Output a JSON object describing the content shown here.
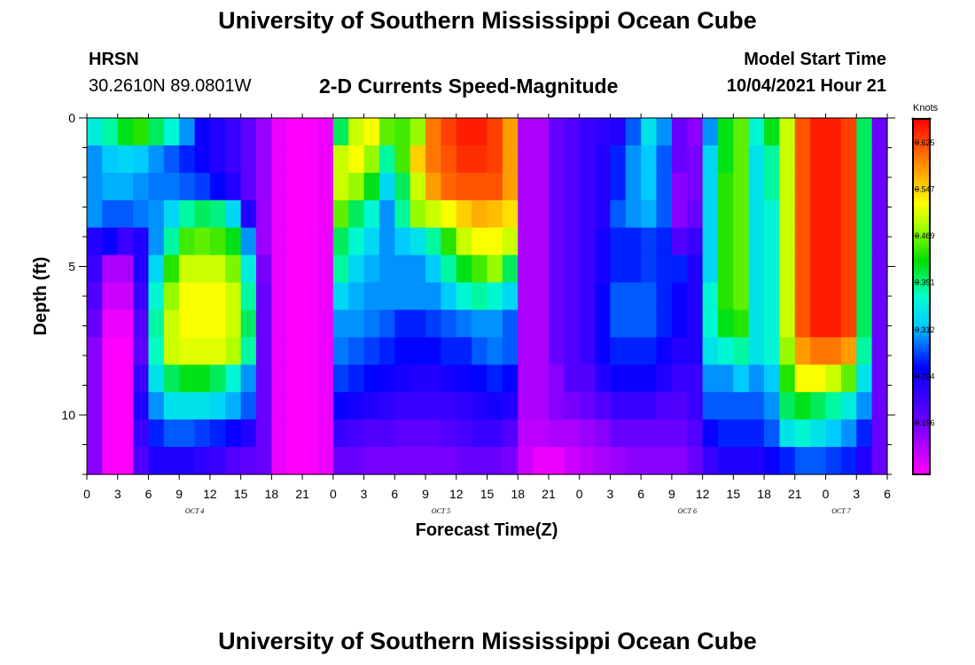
{
  "header": {
    "title": "University of Southern Mississippi Ocean Cube",
    "station": "HRSN",
    "coords": "30.2610N  89.0801W",
    "subtitle": "2-D Currents Speed-Magnitude",
    "model_start_label": "Model Start Time",
    "model_start_value": "10/04/2021 Hour 21",
    "footer_title": "University of Southern Mississippi Ocean Cube"
  },
  "chart_data": {
    "type": "heatmap",
    "title": "2-D Currents Speed-Magnitude",
    "xlabel": "Forecast Time(Z)",
    "ylabel": "Depth (ft)",
    "x_ticks": [
      "0",
      "3",
      "6",
      "9",
      "12",
      "15",
      "18",
      "21",
      "0",
      "3",
      "6",
      "9",
      "12",
      "15",
      "18",
      "21",
      "0",
      "3",
      "6",
      "9",
      "12",
      "15",
      "18",
      "21",
      "0",
      "3",
      "6"
    ],
    "day_labels": [
      {
        "label": "OCT 4",
        "tick_index": 4
      },
      {
        "label": "OCT 5",
        "tick_index": 12
      },
      {
        "label": "OCT 6",
        "tick_index": 20
      },
      {
        "label": "OCT 7",
        "tick_index": 25
      }
    ],
    "y_ticks": [
      "0",
      "5",
      "10"
    ],
    "y_range_ft": [
      0,
      12
    ],
    "x_range_hours": [
      0,
      78
    ],
    "colorbar": {
      "unit_label": "Knots",
      "tick_labels": [
        "0.625",
        "0.547",
        "0.469",
        "0.391",
        "0.312",
        "0.234",
        "0.156"
      ],
      "tick_values": [
        0.625,
        0.547,
        0.469,
        0.391,
        0.312,
        0.234,
        0.156
      ],
      "min": 0.07,
      "max": 0.665
    },
    "z_values_knots": [
      [
        0.35,
        0.38,
        0.42,
        0.44,
        0.4,
        0.36,
        0.3,
        0.24,
        0.22,
        0.2,
        0.17,
        0.13,
        0.08,
        0.06,
        0.06,
        0.08,
        0.4,
        0.5,
        0.52,
        0.46,
        0.45,
        0.48,
        0.6,
        0.63,
        0.65,
        0.65,
        0.63,
        0.58,
        0.12,
        0.12,
        0.16,
        0.18,
        0.2,
        0.21,
        0.22,
        0.28,
        0.34,
        0.3,
        0.16,
        0.14,
        0.3,
        0.42,
        0.46,
        0.36,
        0.42,
        0.5,
        0.62,
        0.65,
        0.65,
        0.63,
        0.4,
        0.16
      ],
      [
        0.3,
        0.32,
        0.33,
        0.32,
        0.3,
        0.28,
        0.26,
        0.24,
        0.22,
        0.2,
        0.17,
        0.13,
        0.08,
        0.06,
        0.06,
        0.08,
        0.5,
        0.52,
        0.48,
        0.38,
        0.45,
        0.55,
        0.6,
        0.62,
        0.64,
        0.64,
        0.63,
        0.58,
        0.12,
        0.12,
        0.16,
        0.18,
        0.2,
        0.22,
        0.26,
        0.3,
        0.32,
        0.28,
        0.16,
        0.15,
        0.33,
        0.42,
        0.46,
        0.34,
        0.38,
        0.5,
        0.62,
        0.65,
        0.65,
        0.63,
        0.4,
        0.16
      ],
      [
        0.3,
        0.31,
        0.31,
        0.3,
        0.29,
        0.29,
        0.28,
        0.27,
        0.25,
        0.22,
        0.17,
        0.13,
        0.08,
        0.06,
        0.06,
        0.08,
        0.5,
        0.48,
        0.42,
        0.33,
        0.4,
        0.5,
        0.58,
        0.61,
        0.62,
        0.62,
        0.62,
        0.58,
        0.12,
        0.12,
        0.16,
        0.18,
        0.2,
        0.22,
        0.26,
        0.3,
        0.32,
        0.28,
        0.14,
        0.15,
        0.33,
        0.44,
        0.46,
        0.34,
        0.38,
        0.5,
        0.62,
        0.65,
        0.65,
        0.63,
        0.4,
        0.16
      ],
      [
        0.3,
        0.28,
        0.28,
        0.29,
        0.3,
        0.33,
        0.38,
        0.4,
        0.39,
        0.33,
        0.22,
        0.13,
        0.08,
        0.06,
        0.06,
        0.08,
        0.46,
        0.4,
        0.36,
        0.3,
        0.38,
        0.48,
        0.5,
        0.52,
        0.55,
        0.57,
        0.56,
        0.54,
        0.12,
        0.12,
        0.16,
        0.18,
        0.2,
        0.22,
        0.28,
        0.3,
        0.31,
        0.28,
        0.14,
        0.16,
        0.33,
        0.44,
        0.46,
        0.34,
        0.36,
        0.5,
        0.62,
        0.65,
        0.65,
        0.63,
        0.4,
        0.16
      ],
      [
        0.22,
        0.24,
        0.2,
        0.22,
        0.3,
        0.38,
        0.45,
        0.46,
        0.45,
        0.42,
        0.3,
        0.13,
        0.08,
        0.06,
        0.06,
        0.08,
        0.4,
        0.36,
        0.33,
        0.3,
        0.32,
        0.34,
        0.38,
        0.44,
        0.5,
        0.52,
        0.52,
        0.5,
        0.12,
        0.12,
        0.16,
        0.18,
        0.2,
        0.23,
        0.26,
        0.26,
        0.27,
        0.26,
        0.18,
        0.2,
        0.33,
        0.44,
        0.46,
        0.34,
        0.36,
        0.5,
        0.62,
        0.65,
        0.65,
        0.63,
        0.4,
        0.16
      ],
      [
        0.2,
        0.12,
        0.12,
        0.22,
        0.33,
        0.44,
        0.5,
        0.5,
        0.5,
        0.47,
        0.35,
        0.15,
        0.08,
        0.06,
        0.06,
        0.08,
        0.38,
        0.33,
        0.31,
        0.3,
        0.3,
        0.3,
        0.32,
        0.38,
        0.42,
        0.45,
        0.48,
        0.4,
        0.12,
        0.12,
        0.16,
        0.18,
        0.2,
        0.23,
        0.26,
        0.26,
        0.27,
        0.26,
        0.26,
        0.22,
        0.33,
        0.44,
        0.46,
        0.34,
        0.36,
        0.5,
        0.62,
        0.65,
        0.65,
        0.63,
        0.4,
        0.16
      ],
      [
        0.18,
        0.1,
        0.1,
        0.2,
        0.36,
        0.48,
        0.52,
        0.52,
        0.52,
        0.5,
        0.38,
        0.16,
        0.08,
        0.06,
        0.06,
        0.08,
        0.33,
        0.31,
        0.3,
        0.3,
        0.3,
        0.3,
        0.3,
        0.32,
        0.36,
        0.38,
        0.36,
        0.33,
        0.12,
        0.12,
        0.16,
        0.18,
        0.2,
        0.24,
        0.28,
        0.28,
        0.28,
        0.26,
        0.24,
        0.22,
        0.36,
        0.44,
        0.46,
        0.34,
        0.36,
        0.5,
        0.62,
        0.65,
        0.65,
        0.63,
        0.4,
        0.16
      ],
      [
        0.16,
        0.08,
        0.08,
        0.18,
        0.38,
        0.5,
        0.52,
        0.52,
        0.52,
        0.5,
        0.4,
        0.16,
        0.08,
        0.06,
        0.06,
        0.08,
        0.3,
        0.3,
        0.29,
        0.28,
        0.26,
        0.26,
        0.27,
        0.28,
        0.29,
        0.3,
        0.3,
        0.28,
        0.12,
        0.12,
        0.16,
        0.18,
        0.2,
        0.24,
        0.28,
        0.28,
        0.28,
        0.26,
        0.24,
        0.22,
        0.36,
        0.42,
        0.44,
        0.34,
        0.36,
        0.5,
        0.62,
        0.65,
        0.65,
        0.63,
        0.4,
        0.16
      ],
      [
        0.14,
        0.06,
        0.06,
        0.17,
        0.37,
        0.5,
        0.51,
        0.51,
        0.51,
        0.49,
        0.38,
        0.16,
        0.08,
        0.06,
        0.06,
        0.08,
        0.29,
        0.28,
        0.27,
        0.26,
        0.25,
        0.25,
        0.25,
        0.26,
        0.26,
        0.28,
        0.29,
        0.28,
        0.12,
        0.12,
        0.16,
        0.18,
        0.2,
        0.24,
        0.26,
        0.26,
        0.26,
        0.24,
        0.22,
        0.22,
        0.34,
        0.36,
        0.38,
        0.34,
        0.36,
        0.48,
        0.58,
        0.6,
        0.6,
        0.58,
        0.38,
        0.16
      ],
      [
        0.14,
        0.06,
        0.06,
        0.2,
        0.34,
        0.4,
        0.42,
        0.42,
        0.4,
        0.36,
        0.3,
        0.16,
        0.08,
        0.06,
        0.06,
        0.08,
        0.27,
        0.26,
        0.25,
        0.24,
        0.23,
        0.22,
        0.22,
        0.23,
        0.24,
        0.25,
        0.26,
        0.25,
        0.12,
        0.12,
        0.14,
        0.18,
        0.18,
        0.22,
        0.24,
        0.24,
        0.24,
        0.22,
        0.2,
        0.2,
        0.3,
        0.3,
        0.32,
        0.3,
        0.32,
        0.44,
        0.52,
        0.52,
        0.5,
        0.46,
        0.34,
        0.16
      ],
      [
        0.14,
        0.06,
        0.06,
        0.22,
        0.3,
        0.34,
        0.34,
        0.34,
        0.33,
        0.31,
        0.28,
        0.16,
        0.08,
        0.06,
        0.06,
        0.08,
        0.24,
        0.23,
        0.22,
        0.21,
        0.2,
        0.2,
        0.2,
        0.2,
        0.21,
        0.22,
        0.23,
        0.22,
        0.12,
        0.12,
        0.14,
        0.15,
        0.16,
        0.18,
        0.2,
        0.2,
        0.2,
        0.18,
        0.18,
        0.2,
        0.28,
        0.28,
        0.28,
        0.28,
        0.3,
        0.4,
        0.42,
        0.4,
        0.38,
        0.35,
        0.3,
        0.16
      ],
      [
        0.14,
        0.06,
        0.06,
        0.2,
        0.26,
        0.28,
        0.28,
        0.27,
        0.26,
        0.24,
        0.22,
        0.16,
        0.08,
        0.06,
        0.06,
        0.08,
        0.2,
        0.19,
        0.18,
        0.18,
        0.17,
        0.17,
        0.17,
        0.18,
        0.19,
        0.2,
        0.2,
        0.18,
        0.11,
        0.11,
        0.12,
        0.12,
        0.13,
        0.14,
        0.16,
        0.16,
        0.16,
        0.16,
        0.16,
        0.18,
        0.24,
        0.26,
        0.26,
        0.26,
        0.28,
        0.34,
        0.36,
        0.34,
        0.32,
        0.3,
        0.26,
        0.16
      ],
      [
        0.14,
        0.06,
        0.06,
        0.18,
        0.22,
        0.22,
        0.22,
        0.21,
        0.2,
        0.18,
        0.17,
        0.16,
        0.08,
        0.06,
        0.06,
        0.08,
        0.16,
        0.16,
        0.15,
        0.15,
        0.15,
        0.15,
        0.15,
        0.15,
        0.16,
        0.16,
        0.16,
        0.15,
        0.1,
        0.08,
        0.08,
        0.1,
        0.11,
        0.12,
        0.13,
        0.14,
        0.14,
        0.14,
        0.14,
        0.16,
        0.2,
        0.22,
        0.22,
        0.22,
        0.24,
        0.26,
        0.28,
        0.28,
        0.27,
        0.26,
        0.22,
        0.16
      ]
    ]
  }
}
